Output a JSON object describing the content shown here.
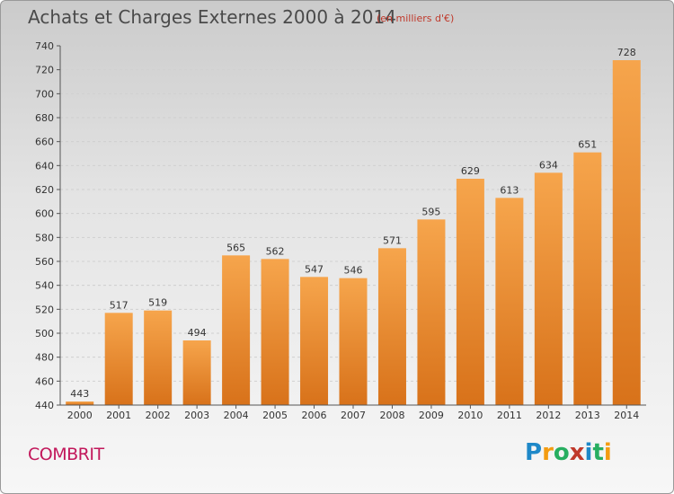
{
  "header": {
    "title": "Achats et Charges Externes 2000 à 2014",
    "unit": "(en milliers d'€)"
  },
  "footer": {
    "commune": "COMBRIT",
    "logo": {
      "letters": [
        "P",
        "r",
        "o",
        "x",
        "i",
        "t",
        "i"
      ],
      "colors": [
        "#1e88c8",
        "#f39c12",
        "#27ae60",
        "#c0392b",
        "#1e88c8",
        "#27ae60",
        "#f39c12"
      ]
    }
  },
  "chart_data": {
    "type": "bar",
    "categories": [
      "2000",
      "2001",
      "2002",
      "2003",
      "2004",
      "2005",
      "2006",
      "2007",
      "2008",
      "2009",
      "2010",
      "2011",
      "2012",
      "2013",
      "2014"
    ],
    "values": [
      443,
      517,
      519,
      494,
      565,
      562,
      547,
      546,
      571,
      595,
      629,
      613,
      634,
      651,
      728
    ],
    "ylim": [
      440,
      740
    ],
    "yticks": [
      440,
      460,
      480,
      500,
      520,
      540,
      560,
      580,
      600,
      620,
      640,
      660,
      680,
      700,
      720,
      740
    ],
    "grid": true,
    "bar_color_top": "#f6a54c",
    "bar_color_bottom": "#d8721a"
  }
}
